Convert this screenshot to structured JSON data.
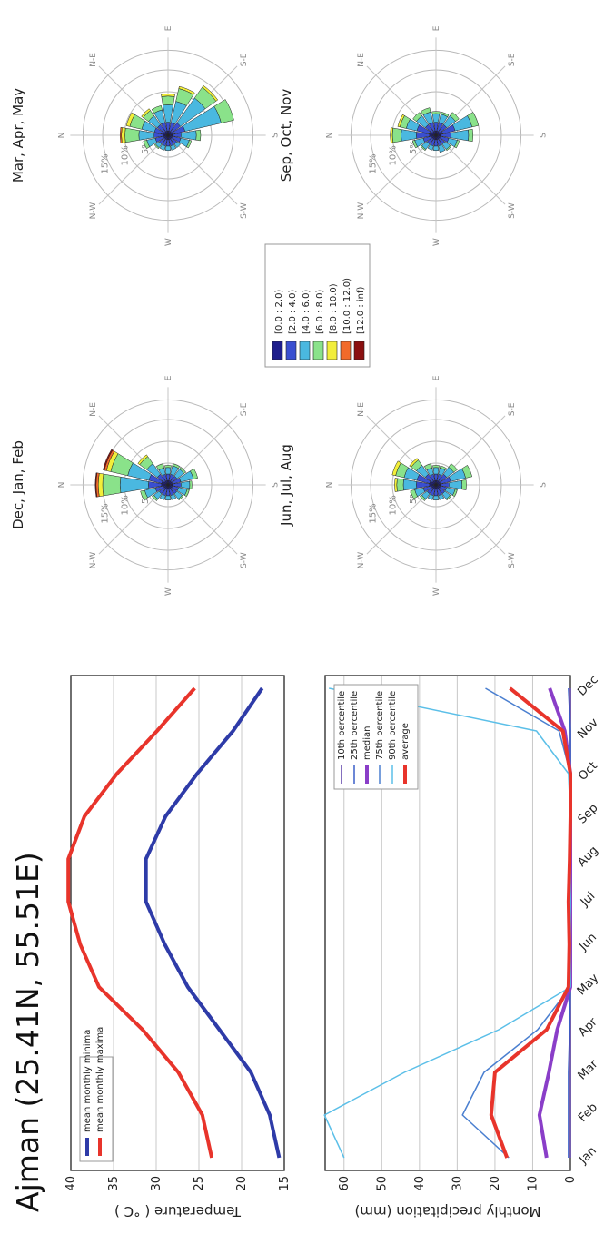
{
  "title": "Ajman  (25.41N, 55.51E)",
  "months": [
    "Jan",
    "Feb",
    "Mar",
    "Apr",
    "May",
    "Jun",
    "Jul",
    "Aug",
    "Sep",
    "Oct",
    "Nov",
    "Dec"
  ],
  "chart_data": [
    {
      "type": "line",
      "ylabel": "Temperature ( °C )",
      "ylim": [
        15,
        40
      ],
      "yticks": [
        15,
        20,
        25,
        30,
        35,
        40
      ],
      "grid": true,
      "legend": "top-left",
      "series": [
        {
          "name": "mean monthly minima",
          "color": "#2e3ba8",
          "values": [
            15.6,
            16.7,
            18.9,
            22.6,
            26.3,
            29.0,
            31.2,
            31.2,
            28.9,
            25.2,
            21.0,
            17.6
          ]
        },
        {
          "name": "mean monthly maxima",
          "color": "#e8342b",
          "values": [
            23.5,
            24.6,
            27.4,
            31.6,
            36.7,
            38.9,
            40.3,
            40.3,
            38.4,
            34.6,
            29.9,
            25.5
          ]
        }
      ]
    },
    {
      "type": "line",
      "ylabel": "Monthly precipitation (mm)",
      "ylim": [
        0,
        65
      ],
      "yticks": [
        0,
        10,
        20,
        30,
        40,
        50,
        60
      ],
      "grid": true,
      "legend": "top-right",
      "series": [
        {
          "name": "10th percentile",
          "color": "#5b3fa8",
          "width": 1.5,
          "values": [
            0,
            0,
            0,
            0,
            0,
            0,
            0,
            0,
            0,
            0,
            0,
            0
          ]
        },
        {
          "name": "25th percentile",
          "color": "#3a5fc8",
          "width": 1.5,
          "values": [
            0.5,
            0.5,
            0.5,
            0.2,
            0,
            0,
            0,
            0,
            0,
            0,
            0,
            0.5
          ]
        },
        {
          "name": "median",
          "color": "#8a3ec8",
          "width": 4,
          "values": [
            6.3,
            8.2,
            5.7,
            3.5,
            0,
            0,
            0,
            0,
            0,
            0,
            1.5,
            5.5
          ]
        },
        {
          "name": "75th percentile",
          "color": "#4a7fd0",
          "width": 1.5,
          "values": [
            16.3,
            28.6,
            22.9,
            8.7,
            0,
            0,
            0,
            0,
            0,
            0,
            3.0,
            22.5
          ]
        },
        {
          "name": "90th percentile",
          "color": "#5bbfe8",
          "width": 1.5,
          "values": [
            60.0,
            65.2,
            44.0,
            19.0,
            0,
            0,
            0,
            0,
            0,
            0.5,
            9.0,
            64.0
          ]
        },
        {
          "name": "average",
          "color": "#e8342b",
          "width": 4,
          "values": [
            16.8,
            21.0,
            20.0,
            6.3,
            0.5,
            0.3,
            0.5,
            0.2,
            0,
            0,
            2.0,
            16.0
          ]
        }
      ]
    }
  ],
  "wind_roses": {
    "rings": [
      "5%",
      "10%",
      "15%"
    ],
    "directions": [
      "N",
      "N-E",
      "E",
      "S-E",
      "S",
      "S-W",
      "W",
      "N-W"
    ],
    "speed_bins": [
      {
        "label": "[0.0 : 2.0)",
        "color": "#1d1d8c"
      },
      {
        "label": "[2.0 : 4.0)",
        "color": "#3a4fd0"
      },
      {
        "label": "[4.0 : 6.0)",
        "color": "#4ab8e0"
      },
      {
        "label": "[6.0 : 8.0)",
        "color": "#8ae28a"
      },
      {
        "label": "[8.0 : 10.0)",
        "color": "#f2ee3a"
      },
      {
        "label": "[10.0 : 12.0)",
        "color": "#f26a2a"
      },
      {
        "label": "[12.0 : inf)",
        "color": "#8a1010"
      }
    ],
    "roses": [
      {
        "title": "Mar, Apr, May",
        "sectors": [
          [
            1.2,
            2,
            3.5,
            3.2,
            0.8,
            0.3,
            0
          ],
          [
            1.2,
            2,
            3,
            2.8,
            0.8,
            0,
            0
          ],
          [
            1,
            2,
            2.5,
            1.5,
            0.5,
            0,
            0
          ],
          [
            1,
            2,
            3,
            1,
            0,
            0,
            0
          ],
          [
            1,
            2,
            4,
            2,
            0.5,
            0,
            0
          ],
          [
            1,
            2,
            5,
            3,
            0.5,
            0,
            0
          ],
          [
            1,
            2.5,
            7,
            3,
            0.5,
            0,
            0
          ],
          [
            1,
            3,
            8.5,
            3,
            0,
            0,
            0
          ],
          [
            1,
            2,
            3.5,
            1,
            0,
            0,
            0
          ],
          [
            1,
            2,
            2,
            0.5,
            0,
            0,
            0
          ],
          [
            1,
            1.5,
            1,
            0,
            0,
            0,
            0
          ],
          [
            1,
            1.5,
            1,
            0,
            0,
            0,
            0
          ],
          [
            1,
            1.5,
            1,
            0,
            0,
            0,
            0
          ],
          [
            1,
            1.5,
            1,
            0,
            0,
            0,
            0
          ],
          [
            1,
            1.5,
            1,
            0.3,
            0,
            0,
            0
          ],
          [
            1,
            2,
            2,
            0.8,
            0,
            0,
            0
          ]
        ]
      },
      {
        "title": "Dec, Jan, Feb",
        "sectors": [
          [
            1.5,
            3,
            6.5,
            4,
            1,
            0.5,
            0.2
          ],
          [
            1.5,
            3,
            5,
            4,
            1,
            0.5,
            0.3
          ],
          [
            1,
            2,
            3,
            2,
            0.5,
            0,
            0
          ],
          [
            1,
            1.5,
            1.5,
            1,
            0,
            0,
            0
          ],
          [
            1,
            1.5,
            1.5,
            0.5,
            0,
            0,
            0
          ],
          [
            1,
            1.5,
            2,
            0.5,
            0,
            0,
            0
          ],
          [
            1,
            1.5,
            2,
            0.5,
            0,
            0,
            0
          ],
          [
            1,
            2,
            3,
            1,
            0,
            0,
            0
          ],
          [
            1,
            2,
            2,
            0.5,
            0,
            0,
            0
          ],
          [
            1,
            1.5,
            2,
            0.5,
            0,
            0,
            0
          ],
          [
            1,
            1.5,
            1.5,
            0.3,
            0,
            0,
            0
          ],
          [
            1,
            1.5,
            1,
            0,
            0,
            0,
            0
          ],
          [
            1,
            1.5,
            1,
            0,
            0,
            0,
            0
          ],
          [
            1,
            1.5,
            1,
            0,
            0,
            0,
            0
          ],
          [
            1,
            1.5,
            1.5,
            0.5,
            0,
            0,
            0
          ],
          [
            1,
            2,
            2.5,
            1,
            0,
            0,
            0
          ]
        ]
      },
      {
        "title": "Sep, Oct, Nov",
        "sectors": [
          [
            1.5,
            3,
            3.5,
            2,
            0.5,
            0,
            0
          ],
          [
            1.5,
            3,
            2.5,
            1.5,
            0.5,
            0,
            0
          ],
          [
            1,
            2,
            2.5,
            1,
            0,
            0,
            0
          ],
          [
            1,
            2,
            2.5,
            1,
            0,
            0,
            0
          ],
          [
            1,
            2,
            2,
            0.5,
            0,
            0,
            0
          ],
          [
            1,
            2,
            2,
            0.5,
            0,
            0,
            0
          ],
          [
            1,
            2,
            2.5,
            1,
            0,
            0,
            0
          ],
          [
            1.5,
            3,
            4,
            1.5,
            0,
            0,
            0
          ],
          [
            1,
            2.5,
            4,
            1,
            0,
            0,
            0
          ],
          [
            1,
            2,
            2,
            0.5,
            0,
            0,
            0
          ],
          [
            1,
            1.5,
            1.5,
            0.3,
            0,
            0,
            0
          ],
          [
            1,
            1.5,
            1.5,
            0,
            0,
            0,
            0
          ],
          [
            1,
            1.5,
            1,
            0,
            0,
            0,
            0
          ],
          [
            1,
            1.5,
            1,
            0,
            0,
            0,
            0
          ],
          [
            1,
            1.5,
            1.5,
            0.3,
            0,
            0,
            0
          ],
          [
            1,
            2,
            2,
            0.5,
            0,
            0,
            0
          ]
        ]
      },
      {
        "title": "Jun, Jul, Aug",
        "sectors": [
          [
            1.5,
            3,
            3,
            1.5,
            0.5,
            0,
            0
          ],
          [
            1.5,
            3,
            3,
            2,
            0.8,
            0,
            0
          ],
          [
            1,
            2,
            2.5,
            1.5,
            0.5,
            0,
            0
          ],
          [
            1,
            1.5,
            1.5,
            1,
            0,
            0,
            0
          ],
          [
            1,
            1.5,
            1.5,
            0.5,
            0,
            0,
            0
          ],
          [
            1,
            1.5,
            1.5,
            0.5,
            0,
            0,
            0
          ],
          [
            1,
            2,
            2,
            1,
            0,
            0,
            0
          ],
          [
            1,
            2.5,
            3.5,
            1.5,
            0,
            0,
            0
          ],
          [
            1,
            2,
            3,
            1,
            0,
            0,
            0
          ],
          [
            1,
            1.5,
            2,
            0.5,
            0,
            0,
            0
          ],
          [
            1,
            1.5,
            1.5,
            0.3,
            0,
            0,
            0
          ],
          [
            1,
            1.5,
            1,
            0,
            0,
            0,
            0
          ],
          [
            1,
            1.5,
            1,
            0,
            0,
            0,
            0
          ],
          [
            1,
            1.5,
            1,
            0,
            0,
            0,
            0
          ],
          [
            1,
            1.5,
            1.5,
            0.5,
            0,
            0,
            0
          ],
          [
            1,
            2,
            2,
            1,
            0,
            0,
            0
          ]
        ]
      }
    ]
  }
}
